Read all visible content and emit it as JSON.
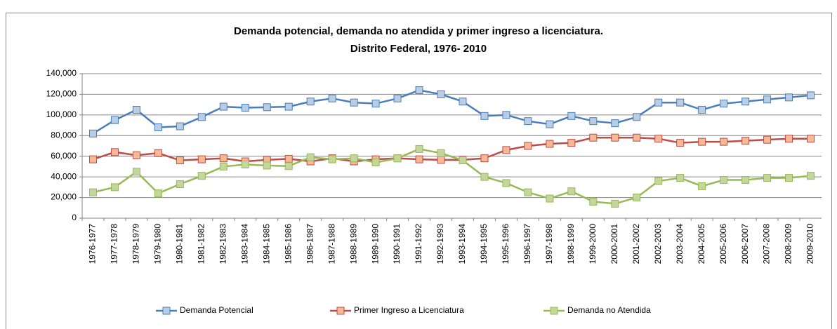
{
  "chart_data": {
    "type": "line",
    "title": [
      "Demanda potencial, demanda no atendida y primer ingreso a licenciatura.",
      "Distrito Federal, 1976- 2010"
    ],
    "categories": [
      "1976-1977",
      "1977-1978",
      "1978-1979",
      "1979-1980",
      "1980-1981",
      "1981-1982",
      "1982-1983",
      "1983-1984",
      "1984-1985",
      "1985-1986",
      "1986-1987",
      "1987-1988",
      "1988-1989",
      "1989-1990",
      "1990-1991",
      "1991-1992",
      "1992-1993",
      "1993-1994",
      "1994-1995",
      "1995-1996",
      "1996-1997",
      "1997-1998",
      "1998-1999",
      "1999-2000",
      "2000-2001",
      "2001-2002",
      "2002-2003",
      "2003-2004",
      "2004-2005",
      "2005-2006",
      "2006-2007",
      "2007-2008",
      "2008-2009",
      "2009-2010"
    ],
    "series": [
      {
        "name": "Demanda Potencial",
        "color": "#4a7ebb",
        "marker_color": "#b9cde5",
        "values": [
          82000,
          95000,
          105000,
          88000,
          89000,
          98000,
          108000,
          107000,
          107500,
          108000,
          113000,
          116000,
          112000,
          111000,
          116000,
          124000,
          120000,
          113000,
          99000,
          100000,
          94000,
          91000,
          99000,
          94000,
          92000,
          98000,
          112000,
          112000,
          105000,
          111000,
          113000,
          115000,
          117000,
          119000
        ]
      },
      {
        "name": "Primer Ingreso a Licenciatura",
        "color": "#be4b48",
        "marker_color": "#f5b995",
        "values": [
          57000,
          64000,
          61000,
          63000,
          56000,
          57000,
          58000,
          55000,
          56500,
          57500,
          55000,
          58000,
          55000,
          57000,
          58000,
          57000,
          56500,
          56500,
          58000,
          66000,
          70000,
          72000,
          73000,
          78000,
          78000,
          78000,
          77000,
          73000,
          74000,
          74000,
          75000,
          76000,
          77000,
          77000
        ]
      },
      {
        "name": "Demanda no Atendida",
        "color": "#98b954",
        "marker_color": "#c3d69b",
        "values": [
          25000,
          30000,
          45000,
          24000,
          33000,
          41000,
          50000,
          52000,
          51000,
          50500,
          59000,
          57000,
          58000,
          54000,
          58000,
          67000,
          63000,
          56000,
          40000,
          34000,
          25000,
          19000,
          26000,
          16000,
          14000,
          20000,
          36000,
          39000,
          31000,
          37000,
          37000,
          39000,
          39000,
          41000
        ]
      }
    ],
    "ylim": [
      0,
      140000
    ],
    "yticks": [
      0,
      {
        "value": 20000,
        "label": "20,000"
      },
      {
        "value": 40000,
        "label": "40,000"
      },
      {
        "value": 60000,
        "label": "60,000"
      },
      {
        "value": 80000,
        "label": "80,000"
      },
      {
        "value": 100000,
        "label": "100,000"
      },
      {
        "value": 120000,
        "label": "120,000"
      },
      {
        "value": 140000,
        "label": "140,000"
      }
    ],
    "grid": true,
    "legend": "bottom"
  }
}
